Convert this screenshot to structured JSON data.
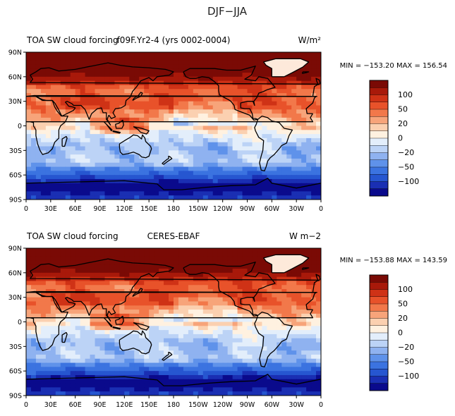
{
  "title": "DJF−JJA",
  "colors": {
    "ramp": [
      "#0a0a8c",
      "#1a2fb3",
      "#2656d0",
      "#3b73e0",
      "#5f92ea",
      "#8fb2f0",
      "#bcd3f6",
      "#e3eefb",
      "#fff1e0",
      "#fbd0b0",
      "#f7a47a",
      "#f2784a",
      "#e8522a",
      "#cf3216",
      "#a8190a",
      "#7a0a05"
    ],
    "coast": "#000000",
    "land_ice": "#fde9da"
  },
  "chart_data": [
    {
      "type": "heatmap",
      "name": "model",
      "title_left": "TOA SW cloud forcing",
      "title_center": "f09F.Yr2-4 (yrs 0002-0004)",
      "title_right": "W/m²",
      "stats": "MIN = −153.20  MAX = 156.54",
      "min": -153.2,
      "max": 156.54,
      "x_ticks": [
        "0",
        "30E",
        "60E",
        "90E",
        "120E",
        "150E",
        "180",
        "150W",
        "120W",
        "90W",
        "60W",
        "30W",
        "0"
      ],
      "y_ticks": [
        "90N",
        "60N",
        "30N",
        "0",
        "30S",
        "60S",
        "90S"
      ],
      "xlim": [
        0,
        360
      ],
      "ylim": [
        -90,
        90
      ],
      "colorbar_levels": [
        -130,
        -110,
        -90,
        -70,
        -50,
        -40,
        -30,
        -20,
        -10,
        0,
        10,
        20,
        30,
        40,
        50,
        70,
        90,
        110,
        130
      ],
      "colorbar_labels": [
        "100",
        "50",
        "20",
        "0",
        "−20",
        "−50",
        "−100"
      ]
    },
    {
      "type": "heatmap",
      "name": "obs",
      "title_left": "TOA SW cloud forcing",
      "title_center": "CERES-EBAF",
      "title_right": "W m−2",
      "stats": "MIN = −153.88  MAX = 143.59",
      "min": -153.88,
      "max": 143.59,
      "x_ticks": [
        "0",
        "30E",
        "60E",
        "90E",
        "120E",
        "150E",
        "180",
        "150W",
        "120W",
        "90W",
        "60W",
        "30W",
        "0"
      ],
      "y_ticks": [
        "90N",
        "60N",
        "30N",
        "0",
        "30S",
        "60S",
        "90S"
      ],
      "xlim": [
        0,
        360
      ],
      "ylim": [
        -90,
        90
      ],
      "colorbar_levels": [
        -130,
        -110,
        -90,
        -70,
        -50,
        -40,
        -30,
        -20,
        -10,
        0,
        10,
        20,
        30,
        40,
        50,
        70,
        90,
        110,
        130
      ],
      "colorbar_labels": [
        "100",
        "50",
        "20",
        "0",
        "−20",
        "−50",
        "−100"
      ]
    }
  ]
}
